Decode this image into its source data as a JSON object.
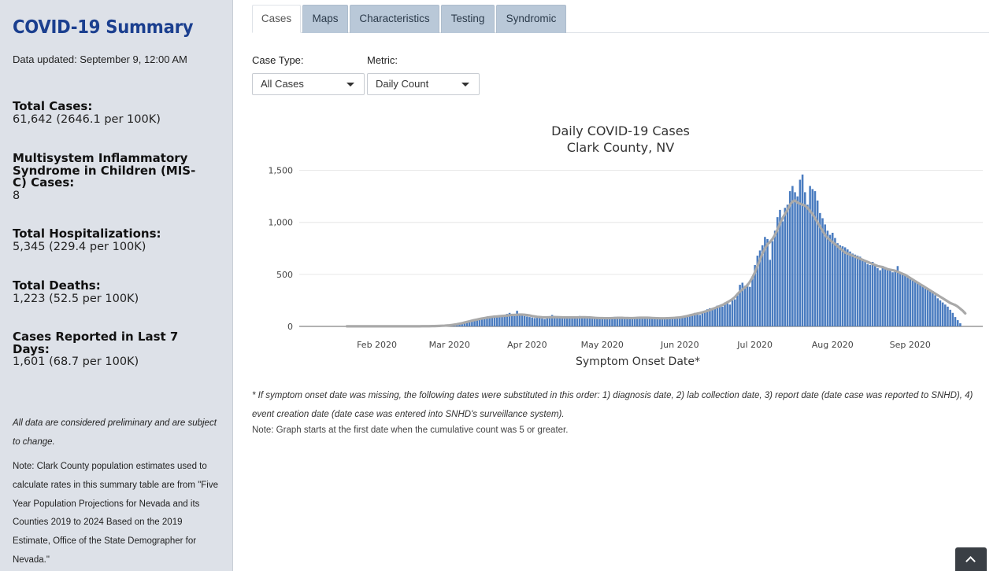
{
  "sidebar": {
    "title": "COVID-19 Summary",
    "updated": "Data updated: September 9, 12:00 AM",
    "stats": [
      {
        "label": "Total Cases:",
        "value": "61,642 (2646.1 per 100K)"
      },
      {
        "label": "Multisystem Inflammatory Syndrome in Children (MIS-C) Cases:",
        "value": "8"
      },
      {
        "label": "Total Hospitalizations:",
        "value": "5,345 (229.4 per 100K)"
      },
      {
        "label": "Total Deaths:",
        "value": "1,223 (52.5 per 100K)"
      },
      {
        "label": "Cases Reported in Last 7 Days:",
        "value": "1,601 (68.7 per 100K)"
      }
    ],
    "prelim_note": "All data are considered preliminary and are subject to change.",
    "population_note": "Note: Clark County population estimates used to calculate rates in this summary table are from \"Five Year Population Projections for Nevada and its Counties 2019 to 2024 Based on the 2019 Estimate, Office of the State Demographer for Nevada.\""
  },
  "tabs": [
    {
      "label": "Cases",
      "active": true
    },
    {
      "label": "Maps",
      "active": false
    },
    {
      "label": "Characteristics",
      "active": false
    },
    {
      "label": "Testing",
      "active": false
    },
    {
      "label": "Syndromic",
      "active": false
    }
  ],
  "controls": {
    "case_type_label": "Case Type:",
    "case_type_value": "All Cases",
    "metric_label": "Metric:",
    "metric_value": "Daily Count"
  },
  "footnotes": {
    "symptom": "* If symptom onset date was missing, the following dates were substituted in this order: 1) diagnosis date, 2) lab collection date, 3) report date (date case was reported to SNHD), 4) event creation date (date case was entered into SNHD's surveillance system).",
    "graph_start": "Note: Graph starts at the first date when the cumulative count was 5 or greater."
  },
  "colors": {
    "bar": "#4a7cc0",
    "line": "#a9a9a9",
    "title_blue": "#1b3f8f"
  },
  "chart_data": {
    "type": "bar",
    "title": "Daily COVID-19 Cases",
    "subtitle": "Clark County, NV",
    "xlabel": "Symptom Onset Date*",
    "ylabel": "",
    "ylim": [
      0,
      1550
    ],
    "yticks": [
      0,
      500,
      1000,
      1500
    ],
    "ytick_labels": [
      "0",
      "500",
      "1,000",
      "1,500"
    ],
    "xtick_labels": [
      "Feb 2020",
      "Mar 2020",
      "Apr 2020",
      "May 2020",
      "Jun 2020",
      "Jul 2020",
      "Aug 2020",
      "Sep 2020"
    ],
    "series": [
      {
        "name": "Daily cases",
        "start_date": "2020-01-20",
        "values": [
          3,
          2,
          0,
          0,
          1,
          0,
          0,
          0,
          0,
          1,
          0,
          0,
          1,
          0,
          0,
          0,
          1,
          0,
          0,
          1,
          0,
          0,
          0,
          1,
          0,
          1,
          0,
          0,
          1,
          2,
          1,
          2,
          2,
          3,
          3,
          2,
          4,
          5,
          7,
          8,
          10,
          12,
          14,
          18,
          22,
          28,
          35,
          40,
          50,
          55,
          60,
          62,
          70,
          75,
          78,
          85,
          90,
          95,
          100,
          105,
          90,
          110,
          95,
          100,
          120,
          130,
          110,
          100,
          150,
          120,
          110,
          100,
          95,
          90,
          85,
          80,
          100,
          95,
          75,
          70,
          85,
          90,
          110,
          100,
          90,
          80,
          85,
          95,
          90,
          85,
          80,
          88,
          82,
          100,
          95,
          92,
          88,
          80,
          75,
          72,
          78,
          82,
          85,
          80,
          76,
          70,
          90,
          92,
          88,
          85,
          82,
          76,
          74,
          80,
          88,
          90,
          85,
          80,
          76,
          90,
          84,
          82,
          80,
          76,
          74,
          72,
          75,
          80,
          88,
          86,
          84,
          82,
          84,
          90,
          85,
          100,
          105,
          110,
          120,
          130,
          115,
          110,
          140,
          150,
          165,
          175,
          160,
          180,
          200,
          195,
          190,
          230,
          240,
          210,
          250,
          260,
          300,
          400,
          420,
          390,
          410,
          380,
          480,
          590,
          680,
          730,
          780,
          860,
          840,
          640,
          820,
          920,
          1050,
          1120,
          1010,
          1140,
          1170,
          1300,
          1350,
          1290,
          1250,
          1410,
          1460,
          1290,
          1170,
          1350,
          1320,
          1300,
          1210,
          1090,
          1040,
          980,
          920,
          880,
          900,
          850,
          800,
          780,
          770,
          760,
          740,
          720,
          700,
          690,
          680,
          670,
          650,
          620,
          600,
          590,
          620,
          580,
          560,
          540,
          580,
          570,
          560,
          550,
          520,
          540,
          580,
          520,
          500,
          490,
          470,
          460,
          450,
          440,
          420,
          410,
          400,
          380,
          360,
          350,
          340,
          300,
          270,
          250,
          230,
          210,
          190,
          160,
          130,
          90,
          60,
          30
        ]
      },
      {
        "name": "7-day average",
        "start_date": "2020-01-20",
        "values": [
          1,
          1,
          1,
          1,
          1,
          1,
          1,
          1,
          1,
          1,
          1,
          1,
          1,
          1,
          1,
          1,
          1,
          1,
          1,
          1,
          1,
          1,
          1,
          1,
          1,
          1,
          1,
          1,
          1,
          1,
          2,
          2,
          2,
          2,
          3,
          3,
          4,
          5,
          6,
          7,
          9,
          11,
          14,
          17,
          21,
          26,
          31,
          37,
          43,
          49,
          55,
          61,
          66,
          71,
          76,
          80,
          85,
          88,
          91,
          94,
          96,
          98,
          100,
          102,
          104,
          107,
          110,
          111,
          112,
          114,
          114,
          112,
          109,
          105,
          100,
          96,
          92,
          90,
          88,
          87,
          87,
          88,
          89,
          89,
          89,
          88,
          87,
          86,
          86,
          86,
          86,
          86,
          86,
          87,
          88,
          88,
          87,
          86,
          84,
          82,
          81,
          80,
          80,
          79,
          79,
          79,
          80,
          81,
          82,
          82,
          82,
          81,
          81,
          80,
          80,
          81,
          82,
          83,
          83,
          83,
          83,
          82,
          81,
          80,
          79,
          78,
          78,
          78,
          79,
          80,
          81,
          82,
          84,
          86,
          90,
          95,
          100,
          106,
          112,
          118,
          123,
          128,
          135,
          142,
          149,
          158,
          167,
          176,
          186,
          196,
          206,
          218,
          232,
          246,
          262,
          282,
          310,
          335,
          355,
          375,
          395,
          430,
          470,
          520,
          580,
          640,
          700,
          750,
          790,
          810,
          840,
          880,
          930,
          990,
          1040,
          1080,
          1120,
          1170,
          1200,
          1210,
          1190,
          1180,
          1170,
          1160,
          1140,
          1110,
          1080,
          1040,
          1000,
          960,
          920,
          880,
          850,
          830,
          810,
          790,
          770,
          750,
          730,
          710,
          700,
          690,
          680,
          670,
          660,
          650,
          640,
          630,
          620,
          610,
          600,
          590,
          580,
          575,
          570,
          560,
          550,
          545,
          540,
          535,
          525,
          515,
          505,
          495,
          480,
          465,
          450,
          435,
          420,
          405,
          390,
          375,
          360,
          345,
          330,
          315,
          300,
          285,
          270,
          255,
          240,
          225,
          215,
          205,
          190,
          170,
          150,
          125
        ]
      }
    ]
  }
}
